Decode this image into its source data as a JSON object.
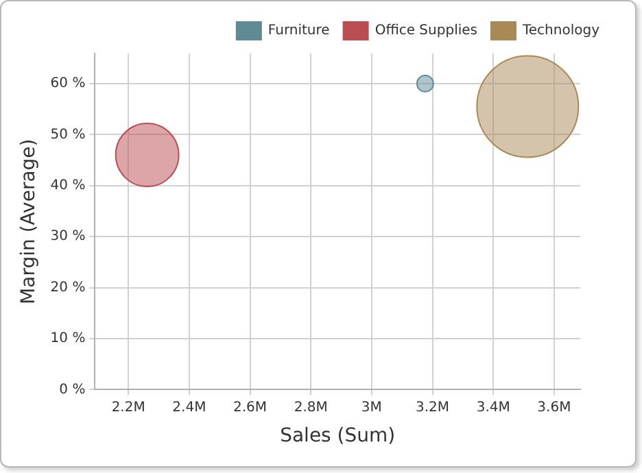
{
  "chart_data": {
    "type": "bubble",
    "xlabel": "Sales (Sum)",
    "ylabel": "Margin (Average)",
    "xlim": [
      2090000,
      3686000
    ],
    "ylim": [
      0,
      65.9
    ],
    "xticks": [
      {
        "value": 2200000,
        "label": "2.2M"
      },
      {
        "value": 2400000,
        "label": "2.4M"
      },
      {
        "value": 2600000,
        "label": "2.6M"
      },
      {
        "value": 2800000,
        "label": "2.8M"
      },
      {
        "value": 3000000,
        "label": "3M"
      },
      {
        "value": 3200000,
        "label": "3.2M"
      },
      {
        "value": 3400000,
        "label": "3.4M"
      },
      {
        "value": 3600000,
        "label": "3.6M"
      }
    ],
    "yticks": [
      {
        "value": 0,
        "label": "0 %"
      },
      {
        "value": 10,
        "label": "10 %"
      },
      {
        "value": 20,
        "label": "20 %"
      },
      {
        "value": 30,
        "label": "30 %"
      },
      {
        "value": 40,
        "label": "40 %"
      },
      {
        "value": 50,
        "label": "50 %"
      },
      {
        "value": 60,
        "label": "60 %"
      }
    ],
    "grid": true,
    "legend": "top right",
    "series": [
      {
        "name": "Furniture",
        "color": "#5f8b95",
        "x": [
          3176000
        ],
        "values": [
          60
        ],
        "sizes": [
          0.026
        ]
      },
      {
        "name": "Office Supplies",
        "color": "#ba4d51",
        "x": [
          2262000
        ],
        "values": [
          46
        ],
        "sizes": [
          0.386
        ]
      },
      {
        "name": "Technology",
        "color": "#a98a57",
        "x": [
          3513000
        ],
        "values": [
          55.5
        ],
        "sizes": [
          1
        ]
      }
    ]
  }
}
